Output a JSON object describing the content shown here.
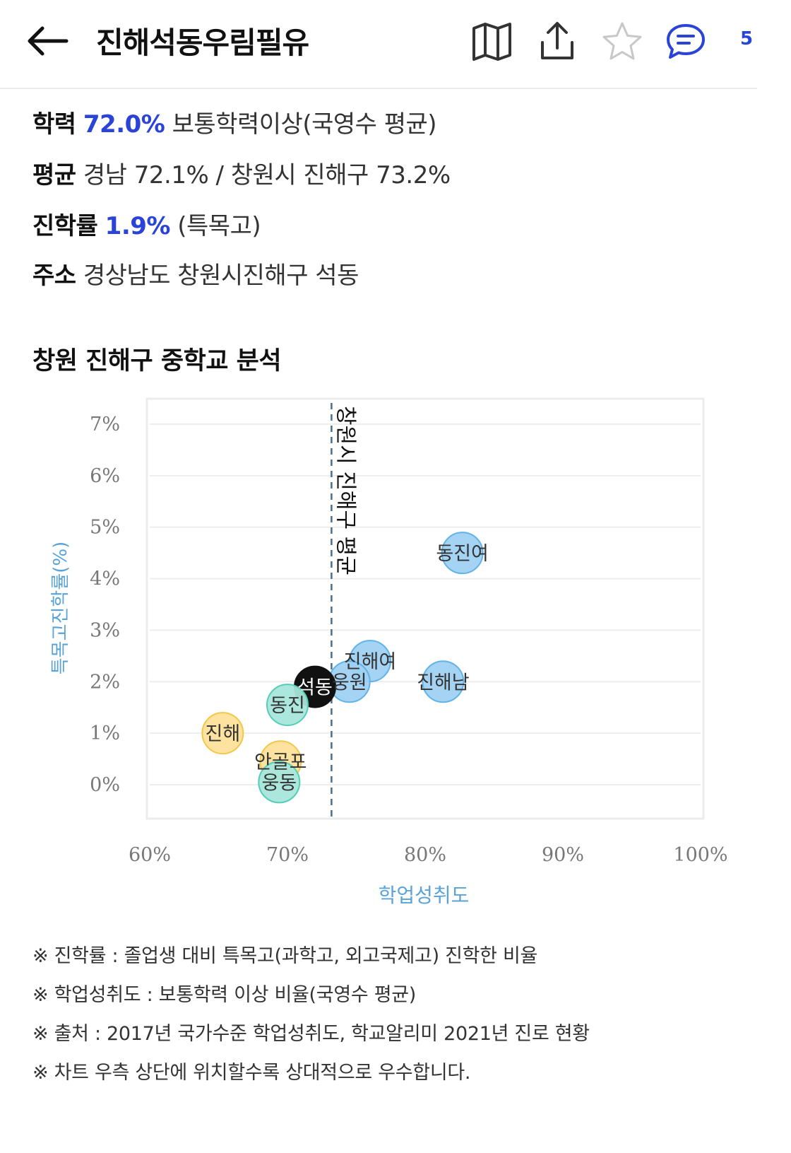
{
  "header": {
    "title": "진해석동우림필유",
    "back_icon": "arrow-left-icon",
    "map_icon": "map-icon",
    "share_icon": "share-icon",
    "star_icon": "star-icon",
    "comment_icon": "comment-icon",
    "comment_count": "5"
  },
  "info": {
    "academic_label": "학력",
    "academic_value": "72.0%",
    "academic_desc": "보통학력이상(국영수 평균)",
    "average_label": "평균",
    "average_value": "경남 72.1% / 창원시 진해구 73.2%",
    "advance_label": "진학률",
    "advance_value": "1.9%",
    "advance_desc": "(특목고)",
    "address_label": "주소",
    "address_value": "경상남도 창원시진해구 석동"
  },
  "section_title": "창원 진해구 중학교 분석",
  "chart_data": {
    "type": "scatter",
    "xlabel": "학업성취도",
    "ylabel": "특목고진학률(%)",
    "xlim": [
      60,
      100
    ],
    "ylim": [
      0,
      7
    ],
    "x_ticks": [
      "60%",
      "70%",
      "80%",
      "90%",
      "100%"
    ],
    "y_ticks": [
      "0%",
      "1%",
      "2%",
      "3%",
      "4%",
      "5%",
      "6%",
      "7%"
    ],
    "reference_line": {
      "x": 73.2,
      "label": "창원시 진해구 평균"
    },
    "points": [
      {
        "name": "동진여",
        "x": 82.7,
        "y": 4.5,
        "color": "#9fd1f2",
        "stroke": "#5fb3e8"
      },
      {
        "name": "진해여",
        "x": 76.0,
        "y": 2.4,
        "color": "#9fd1f2",
        "stroke": "#5fb3e8"
      },
      {
        "name": "진해남",
        "x": 81.3,
        "y": 2.0,
        "color": "#9fd1f2",
        "stroke": "#5fb3e8"
      },
      {
        "name": "웅원",
        "x": 74.5,
        "y": 2.0,
        "color": "#9fd1f2",
        "stroke": "#5fb3e8"
      },
      {
        "name": "석동",
        "x": 72.0,
        "y": 1.9,
        "color": "#111111",
        "stroke": "#111111",
        "highlight": true
      },
      {
        "name": "동진",
        "x": 70.0,
        "y": 1.55,
        "color": "#a8e6dc",
        "stroke": "#54cdb8"
      },
      {
        "name": "진해",
        "x": 65.3,
        "y": 1.0,
        "color": "#fde29a",
        "stroke": "#f2c84b"
      },
      {
        "name": "안골포",
        "x": 69.5,
        "y": 0.45,
        "color": "#fde29a",
        "stroke": "#f2c84b"
      },
      {
        "name": "웅동",
        "x": 69.4,
        "y": 0.05,
        "color": "#a8e6dc",
        "stroke": "#54cdb8"
      }
    ]
  },
  "notes": [
    "※ 진학률 : 졸업생 대비 특목고(과학고, 외고국제고) 진학한 비율",
    "※ 학업성취도 : 보통학력 이상 비율(국영수 평균)",
    "※ 출처 : 2017년 국가수준 학업성취도, 학교알리미 2021년 진로 현황",
    "※ 차트 우측 상단에 위치할수록 상대적으로 우수합니다."
  ]
}
